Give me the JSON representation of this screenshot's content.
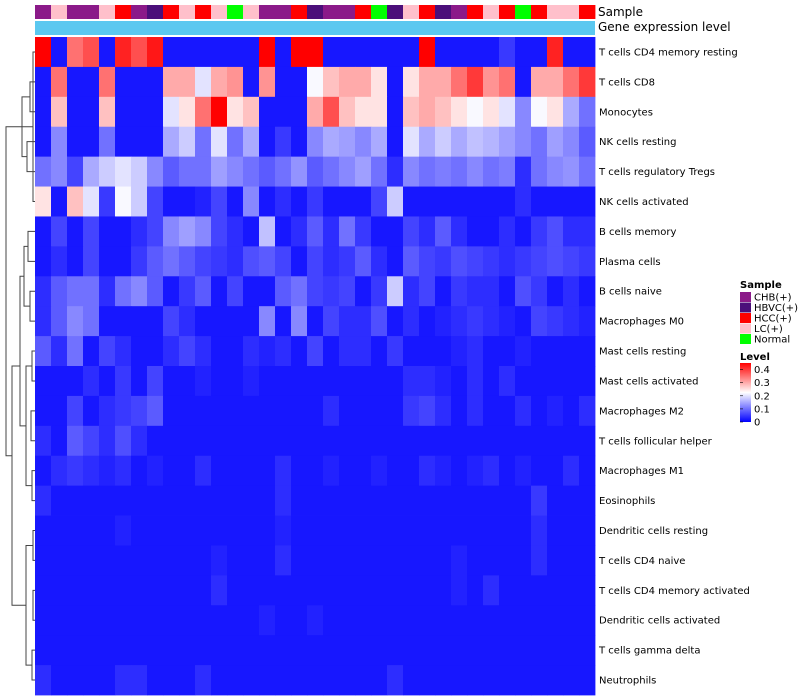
{
  "chart_data": {
    "type": "heatmap",
    "title": "",
    "annotations": {
      "sample_label": "Sample",
      "expression_label": "Gene expression level"
    },
    "rows": [
      "T cells CD4 memory resting",
      "T cells CD8",
      "Monocytes",
      "NK cells resting",
      "T cells regulatory  Tregs",
      "NK cells activated",
      "B cells memory",
      "Plasma cells",
      "B cells naive",
      "Macrophages M0",
      "Mast cells resting",
      "Mast cells activated",
      "Macrophages M2",
      "T cells follicular helper",
      "Macrophages M1",
      "Eosinophils",
      "Dendritic cells resting",
      "T cells CD4 naive",
      "T cells CD4 memory activated",
      "Dendritic cells activated",
      "T cells gamma delta",
      "Neutrophils"
    ],
    "sample_groups": [
      "CHB(+)",
      "LC(+)",
      "CHB(+)",
      "CHB(+)",
      "LC(+)",
      "HCC(+)",
      "CHB(+)",
      "HBVC(+)",
      "HCC(+)",
      "LC(+)",
      "HCC(+)",
      "LC(+)",
      "Normal",
      "LC(+)",
      "CHB(+)",
      "CHB(+)",
      "HCC(+)",
      "HBVC(+)",
      "CHB(+)",
      "CHB(+)",
      "HCC(+)",
      "Normal",
      "HBVC(+)",
      "LC(+)",
      "HCC(+)",
      "HBVC(+)",
      "CHB(+)",
      "HCC(+)",
      "LC(+)",
      "HCC(+)",
      "Normal",
      "HCC(+)",
      "LC(+)",
      "LC(+)",
      "HCC(+)"
    ],
    "values": [
      [
        0.45,
        0.02,
        0.35,
        0.38,
        0.02,
        0.42,
        0.38,
        0.43,
        0.02,
        0.02,
        0.02,
        0.02,
        0.02,
        0.02,
        0.45,
        0.02,
        0.45,
        0.45,
        0.02,
        0.02,
        0.02,
        0.02,
        0.02,
        0.02,
        0.45,
        0.02,
        0.02,
        0.02,
        0.02,
        0.05,
        0.02,
        0.02,
        0.42,
        0.02,
        0.02
      ],
      [
        0.02,
        0.35,
        0.02,
        0.02,
        0.35,
        0.02,
        0.02,
        0.02,
        0.3,
        0.3,
        0.2,
        0.3,
        0.32,
        0.02,
        0.32,
        0.02,
        0.02,
        0.22,
        0.28,
        0.3,
        0.3,
        0.25,
        0.02,
        0.25,
        0.3,
        0.3,
        0.35,
        0.4,
        0.32,
        0.35,
        0.02,
        0.3,
        0.3,
        0.35,
        0.4
      ],
      [
        0.02,
        0.28,
        0.02,
        0.02,
        0.28,
        0.02,
        0.02,
        0.02,
        0.2,
        0.25,
        0.35,
        0.45,
        0.25,
        0.28,
        0.02,
        0.02,
        0.02,
        0.3,
        0.38,
        0.28,
        0.25,
        0.25,
        0.02,
        0.28,
        0.3,
        0.28,
        0.25,
        0.22,
        0.25,
        0.2,
        0.12,
        0.22,
        0.25,
        0.15,
        0.1
      ],
      [
        0.02,
        0.12,
        0.02,
        0.02,
        0.1,
        0.02,
        0.02,
        0.02,
        0.15,
        0.18,
        0.1,
        0.2,
        0.1,
        0.15,
        0.02,
        0.05,
        0.02,
        0.12,
        0.15,
        0.14,
        0.12,
        0.15,
        0.02,
        0.2,
        0.15,
        0.18,
        0.15,
        0.17,
        0.16,
        0.14,
        0.12,
        0.1,
        0.14,
        0.12,
        0.08
      ],
      [
        0.1,
        0.12,
        0.06,
        0.15,
        0.18,
        0.2,
        0.18,
        0.12,
        0.08,
        0.1,
        0.1,
        0.14,
        0.12,
        0.1,
        0.08,
        0.1,
        0.13,
        0.08,
        0.1,
        0.12,
        0.14,
        0.1,
        0.04,
        0.12,
        0.1,
        0.11,
        0.1,
        0.12,
        0.1,
        0.11,
        0.04,
        0.1,
        0.12,
        0.13,
        0.1
      ],
      [
        0.25,
        0.02,
        0.28,
        0.2,
        0.05,
        0.22,
        0.18,
        0.06,
        0.02,
        0.02,
        0.03,
        0.06,
        0.02,
        0.12,
        0.02,
        0.04,
        0.02,
        0.05,
        0.02,
        0.02,
        0.02,
        0.06,
        0.18,
        0.02,
        0.02,
        0.02,
        0.02,
        0.02,
        0.02,
        0.02,
        0.04,
        0.02,
        0.02,
        0.02,
        0.02
      ],
      [
        0.02,
        0.06,
        0.02,
        0.06,
        0.02,
        0.02,
        0.04,
        0.06,
        0.12,
        0.14,
        0.12,
        0.06,
        0.04,
        0.02,
        0.17,
        0.02,
        0.04,
        0.08,
        0.04,
        0.1,
        0.05,
        0.02,
        0.02,
        0.06,
        0.04,
        0.08,
        0.04,
        0.02,
        0.02,
        0.04,
        0.02,
        0.05,
        0.07,
        0.04,
        0.04
      ],
      [
        0.02,
        0.04,
        0.02,
        0.06,
        0.02,
        0.02,
        0.05,
        0.08,
        0.1,
        0.08,
        0.06,
        0.05,
        0.04,
        0.07,
        0.08,
        0.06,
        0.02,
        0.06,
        0.04,
        0.05,
        0.08,
        0.04,
        0.02,
        0.08,
        0.06,
        0.05,
        0.07,
        0.06,
        0.05,
        0.04,
        0.05,
        0.06,
        0.07,
        0.06,
        0.05
      ],
      [
        0.04,
        0.08,
        0.1,
        0.1,
        0.04,
        0.1,
        0.12,
        0.08,
        0.02,
        0.05,
        0.08,
        0.02,
        0.06,
        0.02,
        0.02,
        0.08,
        0.1,
        0.06,
        0.05,
        0.06,
        0.02,
        0.05,
        0.18,
        0.04,
        0.06,
        0.02,
        0.05,
        0.04,
        0.04,
        0.02,
        0.07,
        0.05,
        0.02,
        0.04,
        0.02
      ],
      [
        0.04,
        0.08,
        0.12,
        0.1,
        0.02,
        0.02,
        0.02,
        0.02,
        0.06,
        0.04,
        0.02,
        0.02,
        0.02,
        0.02,
        0.12,
        0.02,
        0.12,
        0.02,
        0.06,
        0.04,
        0.04,
        0.07,
        0.02,
        0.04,
        0.02,
        0.03,
        0.04,
        0.05,
        0.04,
        0.03,
        0.02,
        0.06,
        0.05,
        0.04,
        0.03
      ],
      [
        0.08,
        0.04,
        0.1,
        0.02,
        0.06,
        0.04,
        0.02,
        0.02,
        0.04,
        0.06,
        0.04,
        0.02,
        0.02,
        0.04,
        0.03,
        0.04,
        0.02,
        0.06,
        0.02,
        0.04,
        0.04,
        0.02,
        0.05,
        0.02,
        0.02,
        0.02,
        0.03,
        0.04,
        0.02,
        0.02,
        0.03,
        0.02,
        0.02,
        0.02,
        0.02
      ],
      [
        0.02,
        0.02,
        0.02,
        0.04,
        0.02,
        0.05,
        0.02,
        0.06,
        0.02,
        0.02,
        0.03,
        0.02,
        0.02,
        0.03,
        0.02,
        0.02,
        0.02,
        0.02,
        0.02,
        0.02,
        0.02,
        0.02,
        0.02,
        0.04,
        0.04,
        0.03,
        0.02,
        0.04,
        0.02,
        0.04,
        0.02,
        0.02,
        0.02,
        0.02,
        0.02
      ],
      [
        0.02,
        0.02,
        0.06,
        0.02,
        0.04,
        0.05,
        0.06,
        0.08,
        0.02,
        0.02,
        0.02,
        0.02,
        0.02,
        0.02,
        0.02,
        0.02,
        0.02,
        0.02,
        0.04,
        0.02,
        0.02,
        0.02,
        0.02,
        0.05,
        0.06,
        0.04,
        0.02,
        0.04,
        0.02,
        0.02,
        0.04,
        0.02,
        0.03,
        0.02,
        0.04
      ],
      [
        0.04,
        0.02,
        0.08,
        0.06,
        0.04,
        0.07,
        0.04,
        0.02,
        0.02,
        0.02,
        0.02,
        0.02,
        0.02,
        0.02,
        0.02,
        0.02,
        0.02,
        0.02,
        0.02,
        0.02,
        0.02,
        0.02,
        0.02,
        0.02,
        0.02,
        0.02,
        0.02,
        0.02,
        0.02,
        0.02,
        0.02,
        0.02,
        0.02,
        0.02,
        0.02
      ],
      [
        0.02,
        0.04,
        0.05,
        0.04,
        0.03,
        0.04,
        0.02,
        0.03,
        0.02,
        0.02,
        0.04,
        0.02,
        0.02,
        0.02,
        0.02,
        0.04,
        0.02,
        0.02,
        0.03,
        0.02,
        0.02,
        0.03,
        0.02,
        0.02,
        0.04,
        0.03,
        0.02,
        0.03,
        0.04,
        0.02,
        0.03,
        0.02,
        0.02,
        0.04,
        0.02
      ],
      [
        0.04,
        0.02,
        0.02,
        0.02,
        0.02,
        0.02,
        0.02,
        0.02,
        0.02,
        0.02,
        0.02,
        0.02,
        0.02,
        0.02,
        0.02,
        0.04,
        0.02,
        0.02,
        0.02,
        0.02,
        0.02,
        0.02,
        0.02,
        0.02,
        0.02,
        0.02,
        0.02,
        0.02,
        0.02,
        0.02,
        0.02,
        0.05,
        0.02,
        0.02,
        0.02
      ],
      [
        0.02,
        0.02,
        0.02,
        0.02,
        0.02,
        0.03,
        0.02,
        0.02,
        0.02,
        0.02,
        0.02,
        0.02,
        0.02,
        0.02,
        0.02,
        0.03,
        0.02,
        0.02,
        0.02,
        0.02,
        0.02,
        0.02,
        0.02,
        0.02,
        0.02,
        0.02,
        0.02,
        0.02,
        0.02,
        0.02,
        0.02,
        0.04,
        0.02,
        0.02,
        0.02
      ],
      [
        0.02,
        0.02,
        0.02,
        0.02,
        0.02,
        0.02,
        0.02,
        0.02,
        0.02,
        0.02,
        0.02,
        0.03,
        0.02,
        0.02,
        0.02,
        0.04,
        0.02,
        0.02,
        0.02,
        0.02,
        0.02,
        0.02,
        0.02,
        0.02,
        0.02,
        0.02,
        0.03,
        0.02,
        0.02,
        0.02,
        0.02,
        0.04,
        0.02,
        0.02,
        0.02
      ],
      [
        0.02,
        0.02,
        0.02,
        0.02,
        0.02,
        0.02,
        0.02,
        0.02,
        0.02,
        0.02,
        0.02,
        0.04,
        0.02,
        0.02,
        0.02,
        0.02,
        0.02,
        0.02,
        0.02,
        0.02,
        0.02,
        0.02,
        0.02,
        0.02,
        0.02,
        0.02,
        0.03,
        0.02,
        0.04,
        0.02,
        0.02,
        0.02,
        0.02,
        0.02,
        0.02
      ],
      [
        0.02,
        0.02,
        0.02,
        0.02,
        0.02,
        0.02,
        0.02,
        0.02,
        0.02,
        0.02,
        0.02,
        0.02,
        0.02,
        0.02,
        0.03,
        0.02,
        0.02,
        0.03,
        0.02,
        0.02,
        0.02,
        0.02,
        0.02,
        0.02,
        0.02,
        0.02,
        0.02,
        0.02,
        0.02,
        0.02,
        0.02,
        0.02,
        0.02,
        0.02,
        0.02
      ],
      [
        0.02,
        0.02,
        0.02,
        0.02,
        0.02,
        0.02,
        0.02,
        0.02,
        0.02,
        0.02,
        0.02,
        0.02,
        0.02,
        0.02,
        0.02,
        0.02,
        0.02,
        0.02,
        0.02,
        0.02,
        0.02,
        0.02,
        0.02,
        0.02,
        0.02,
        0.02,
        0.02,
        0.02,
        0.02,
        0.02,
        0.02,
        0.02,
        0.02,
        0.02,
        0.02
      ],
      [
        0.04,
        0.02,
        0.02,
        0.02,
        0.02,
        0.04,
        0.04,
        0.02,
        0.02,
        0.02,
        0.04,
        0.02,
        0.02,
        0.02,
        0.02,
        0.02,
        0.02,
        0.02,
        0.02,
        0.02,
        0.02,
        0.02,
        0.04,
        0.02,
        0.02,
        0.02,
        0.02,
        0.02,
        0.02,
        0.02,
        0.02,
        0.02,
        0.02,
        0.02,
        0.02
      ]
    ],
    "legends": {
      "sample": {
        "title": "Sample",
        "items": [
          {
            "label": "CHB(+)",
            "color": "#8B1A89"
          },
          {
            "label": "HBVC(+)",
            "color": "#4B0F7A"
          },
          {
            "label": "HCC(+)",
            "color": "#FF0000"
          },
          {
            "label": "LC(+)",
            "color": "#FFC0CB"
          },
          {
            "label": "Normal",
            "color": "#00FF00"
          }
        ]
      },
      "level": {
        "title": "Level",
        "ticks": [
          "0.4",
          "0.3",
          "0.2",
          "0.1",
          "0"
        ],
        "tick_values": [
          0.4,
          0.3,
          0.2,
          0.1,
          0.0
        ],
        "min": 0,
        "max": 0.45
      }
    },
    "colors": {
      "low": "#0000FF",
      "mid": "#FFFFFF",
      "high": "#FF0000",
      "expression_bar": "#5BC8F0"
    }
  }
}
